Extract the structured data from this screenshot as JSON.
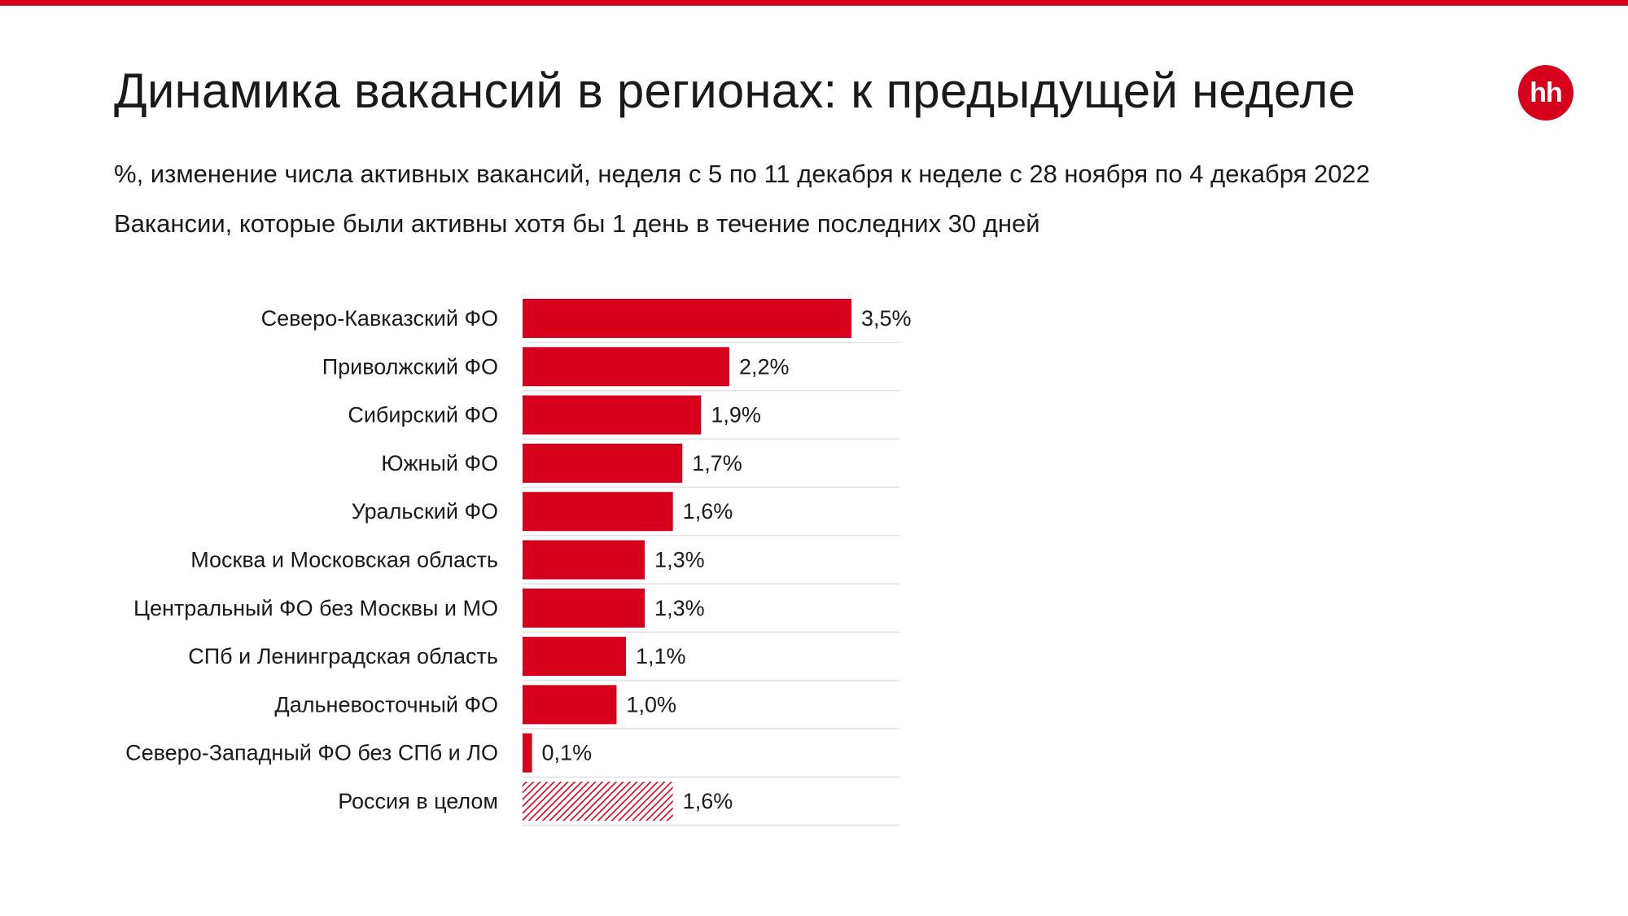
{
  "colors": {
    "accent": "#d6001c",
    "gridline": "#e3e3e3",
    "text": "#1a1a1a"
  },
  "logo": {
    "icon": "hh-logo-icon",
    "text": "hh"
  },
  "chart_data": {
    "type": "bar",
    "orientation": "horizontal",
    "title": "Динамика вакансий в регионах: к предыдущей неделе",
    "subtitle": "%, изменение числа активных вакансий, неделя с 5 по 11 декабря к неделе с 28 ноября по 4 декабря 2022",
    "note": "Вакансии, которые были активны хотя бы 1 день в течение последних 30 дней",
    "xlabel": "",
    "ylabel": "",
    "xlim": [
      0,
      4.0
    ],
    "grid": false,
    "legend": "none",
    "categories": [
      "Северо-Кавказский ФО",
      "Приволжский ФО",
      "Сибирский ФО",
      "Южный ФО",
      "Уральский ФО",
      "Москва и Московская область",
      "Центральный ФО без Москвы и МО",
      "СПб и Ленинградская область",
      "Дальневосточный ФО",
      "Северо-Западный ФО без СПб и ЛО",
      "Россия в целом"
    ],
    "values": [
      3.5,
      2.2,
      1.9,
      1.7,
      1.6,
      1.3,
      1.3,
      1.1,
      1.0,
      0.1,
      1.6
    ],
    "value_labels": [
      "3,5%",
      "2,2%",
      "1,9%",
      "1,7%",
      "1,6%",
      "1,3%",
      "1,3%",
      "1,1%",
      "1,0%",
      "0,1%",
      "1,6%"
    ],
    "bar_styles": [
      "solid",
      "solid",
      "solid",
      "solid",
      "solid",
      "solid",
      "solid",
      "solid",
      "solid",
      "solid",
      "hatched"
    ]
  }
}
